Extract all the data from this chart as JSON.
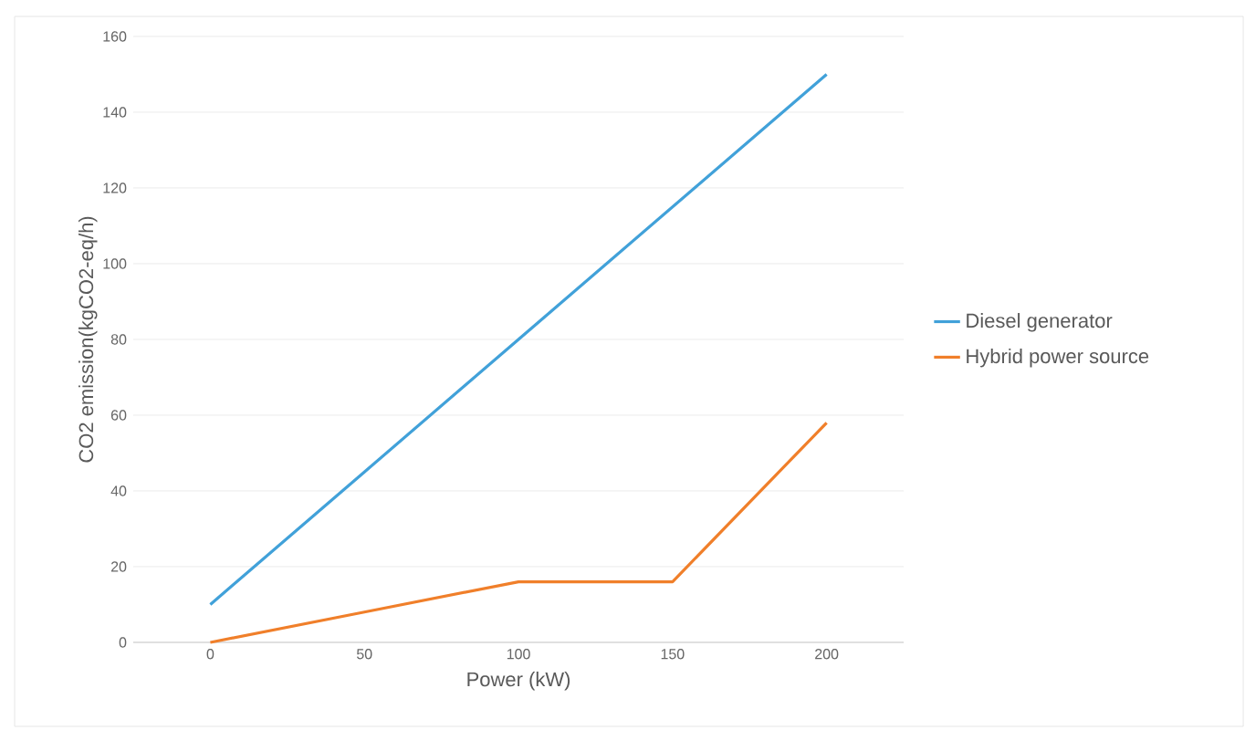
{
  "chart_data": {
    "type": "line",
    "xlabel": "Power (kW)",
    "ylabel": "CO2 emission(kgCO2-eq/h)",
    "categories": [
      "0",
      "50",
      "100",
      "150",
      "200"
    ],
    "series": [
      {
        "name": "Diesel generator",
        "color": "#41a1d9",
        "values": [
          10,
          45,
          80,
          115,
          150
        ]
      },
      {
        "name": "Hybrid power source",
        "color": "#f07f2a",
        "values": [
          0,
          8,
          16,
          16,
          58
        ]
      }
    ],
    "ylim": [
      0,
      160
    ],
    "yticks": [
      0,
      20,
      40,
      60,
      80,
      100,
      120,
      140,
      160
    ],
    "grid": "y",
    "legend": "right",
    "marker": "none",
    "line_style": "solid"
  }
}
